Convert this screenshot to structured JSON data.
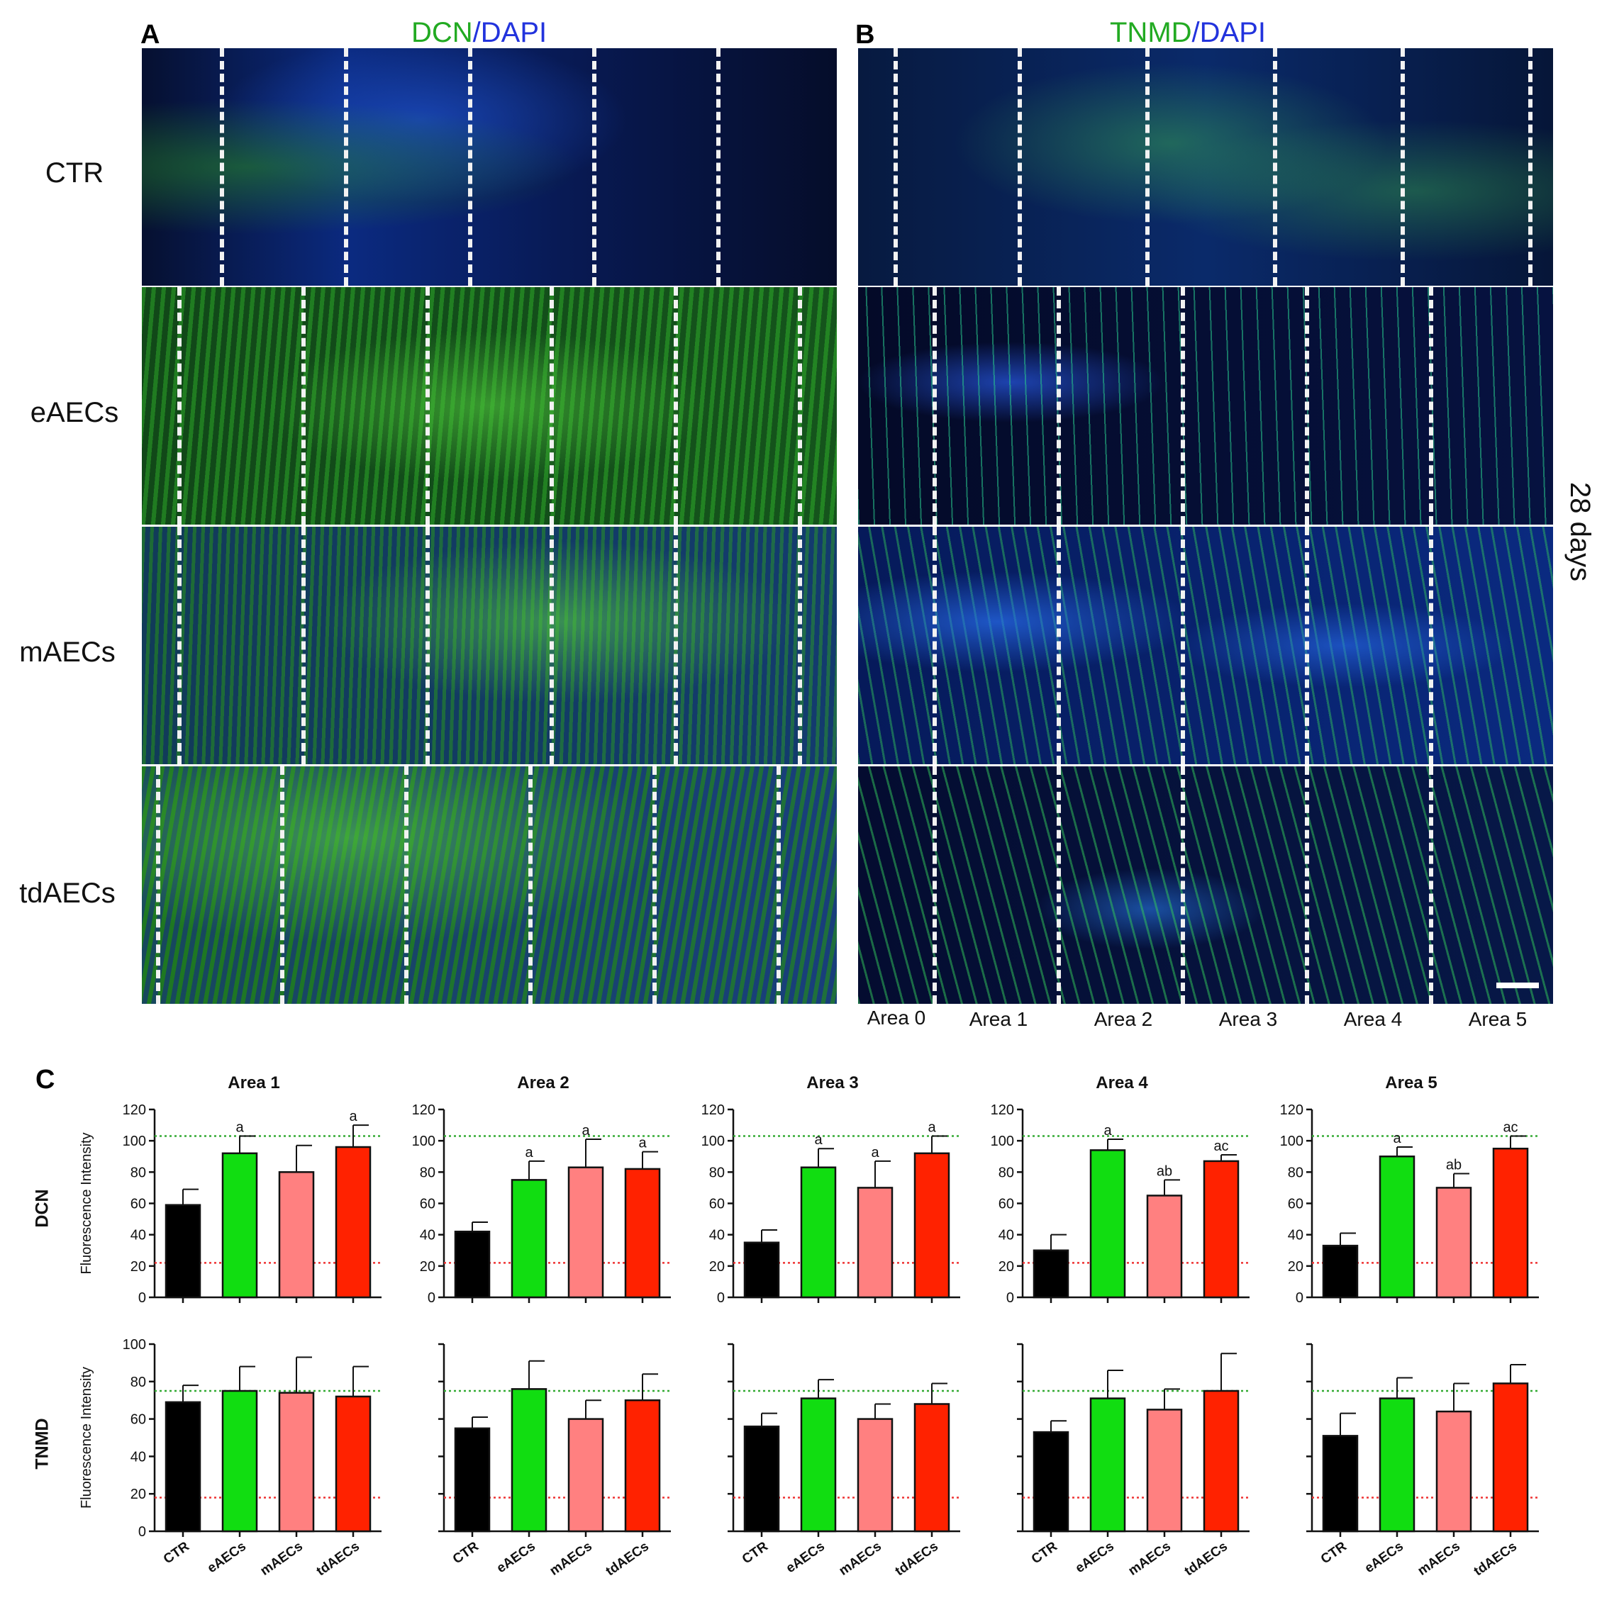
{
  "panel_a": {
    "letter": "A",
    "title_green": "DCN",
    "title_sep": "/",
    "title_blue": "DAPI"
  },
  "panel_b": {
    "letter": "B",
    "title_green": "TNMD",
    "title_sep": "/",
    "title_blue": "DAPI"
  },
  "panel_c": {
    "letter": "C"
  },
  "row_labels": [
    "CTR",
    "eAECs",
    "mAECs",
    "tdAECs"
  ],
  "side_label": "28 days",
  "area_labels": [
    "Area 0",
    "Area 1",
    "Area 2",
    "Area 3",
    "Area 4",
    "Area 5"
  ],
  "colors": {
    "green_text": "#22aa22",
    "blue_text": "#2233dd",
    "ctr": "#000000",
    "eaecs": "#11dd11",
    "maecs": "#ff8080",
    "tdaecs": "#ff2200",
    "ref_green": "#33aa33",
    "ref_red": "#ee3333"
  },
  "chart_data": [
    {
      "type": "bar",
      "row": "DCN",
      "title": "Area 1",
      "ylabel": "Fluorescence Intensity",
      "categories": [
        "CTR",
        "eAECs",
        "mAECs",
        "tdAECs"
      ],
      "values": [
        59,
        92,
        80,
        96
      ],
      "errors": [
        10,
        11,
        17,
        14
      ],
      "annotations": [
        "",
        "a",
        "",
        "a"
      ],
      "ylim": [
        0,
        120
      ],
      "yticks": [
        0,
        20,
        40,
        60,
        80,
        100,
        120
      ],
      "show_tick_labels": true,
      "ref_lines": {
        "green": 103,
        "red": 22
      }
    },
    {
      "type": "bar",
      "row": "DCN",
      "title": "Area 2",
      "ylabel": "",
      "categories": [
        "CTR",
        "eAECs",
        "mAECs",
        "tdAECs"
      ],
      "values": [
        42,
        75,
        83,
        82
      ],
      "errors": [
        6,
        12,
        18,
        11
      ],
      "annotations": [
        "",
        "a",
        "a",
        "a"
      ],
      "ylim": [
        0,
        120
      ],
      "yticks": [
        0,
        20,
        40,
        60,
        80,
        100,
        120
      ],
      "show_tick_labels": true,
      "ref_lines": {
        "green": 103,
        "red": 22
      }
    },
    {
      "type": "bar",
      "row": "DCN",
      "title": "Area 3",
      "ylabel": "",
      "categories": [
        "CTR",
        "eAECs",
        "mAECs",
        "tdAECs"
      ],
      "values": [
        35,
        83,
        70,
        92
      ],
      "errors": [
        8,
        12,
        17,
        11
      ],
      "annotations": [
        "",
        "a",
        "a",
        "a"
      ],
      "ylim": [
        0,
        120
      ],
      "yticks": [
        0,
        20,
        40,
        60,
        80,
        100,
        120
      ],
      "show_tick_labels": true,
      "ref_lines": {
        "green": 103,
        "red": 22
      }
    },
    {
      "type": "bar",
      "row": "DCN",
      "title": "Area 4",
      "ylabel": "",
      "categories": [
        "CTR",
        "eAECs",
        "mAECs",
        "tdAECs"
      ],
      "values": [
        30,
        94,
        65,
        87
      ],
      "errors": [
        10,
        7,
        10,
        4
      ],
      "annotations": [
        "",
        "a",
        "ab",
        "ac"
      ],
      "ylim": [
        0,
        120
      ],
      "yticks": [
        0,
        20,
        40,
        60,
        80,
        100,
        120
      ],
      "show_tick_labels": true,
      "ref_lines": {
        "green": 103,
        "red": 22
      }
    },
    {
      "type": "bar",
      "row": "DCN",
      "title": "Area 5",
      "ylabel": "",
      "categories": [
        "CTR",
        "eAECs",
        "mAECs",
        "tdAECs"
      ],
      "values": [
        33,
        90,
        70,
        95
      ],
      "errors": [
        8,
        6,
        9,
        8
      ],
      "annotations": [
        "",
        "a",
        "ab",
        "ac"
      ],
      "ylim": [
        0,
        120
      ],
      "yticks": [
        0,
        20,
        40,
        60,
        80,
        100,
        120
      ],
      "show_tick_labels": true,
      "ref_lines": {
        "green": 103,
        "red": 22
      }
    },
    {
      "type": "bar",
      "row": "TNMD",
      "title": "",
      "ylabel": "Fluorescence Intensity",
      "categories": [
        "CTR",
        "eAECs",
        "mAECs",
        "tdAECs"
      ],
      "values": [
        69,
        75,
        74,
        72
      ],
      "errors": [
        9,
        13,
        19,
        16
      ],
      "annotations": [
        "",
        "",
        "",
        ""
      ],
      "ylim": [
        0,
        100
      ],
      "yticks": [
        0,
        20,
        40,
        60,
        80,
        100
      ],
      "show_tick_labels": true,
      "ref_lines": {
        "green": 75,
        "red": 18
      }
    },
    {
      "type": "bar",
      "row": "TNMD",
      "title": "",
      "ylabel": "",
      "categories": [
        "CTR",
        "eAECs",
        "mAECs",
        "tdAECs"
      ],
      "values": [
        55,
        76,
        60,
        70
      ],
      "errors": [
        6,
        15,
        10,
        14
      ],
      "annotations": [
        "",
        "",
        "",
        ""
      ],
      "ylim": [
        0,
        100
      ],
      "yticks": [
        0,
        20,
        40,
        60,
        80,
        100
      ],
      "show_tick_labels": false,
      "ref_lines": {
        "green": 75,
        "red": 18
      }
    },
    {
      "type": "bar",
      "row": "TNMD",
      "title": "",
      "ylabel": "",
      "categories": [
        "CTR",
        "eAECs",
        "mAECs",
        "tdAECs"
      ],
      "values": [
        56,
        71,
        60,
        68
      ],
      "errors": [
        7,
        10,
        8,
        11
      ],
      "annotations": [
        "",
        "",
        "",
        ""
      ],
      "ylim": [
        0,
        100
      ],
      "yticks": [
        0,
        20,
        40,
        60,
        80,
        100
      ],
      "show_tick_labels": false,
      "ref_lines": {
        "green": 75,
        "red": 18
      }
    },
    {
      "type": "bar",
      "row": "TNMD",
      "title": "",
      "ylabel": "",
      "categories": [
        "CTR",
        "eAECs",
        "mAECs",
        "tdAECs"
      ],
      "values": [
        53,
        71,
        65,
        75
      ],
      "errors": [
        6,
        15,
        11,
        20
      ],
      "annotations": [
        "",
        "",
        "",
        ""
      ],
      "ylim": [
        0,
        100
      ],
      "yticks": [
        0,
        20,
        40,
        60,
        80,
        100
      ],
      "show_tick_labels": false,
      "ref_lines": {
        "green": 75,
        "red": 18
      }
    },
    {
      "type": "bar",
      "row": "TNMD",
      "title": "",
      "ylabel": "",
      "categories": [
        "CTR",
        "eAECs",
        "mAECs",
        "tdAECs"
      ],
      "values": [
        51,
        71,
        64,
        79
      ],
      "errors": [
        12,
        11,
        15,
        10
      ],
      "annotations": [
        "",
        "",
        "",
        ""
      ],
      "ylim": [
        0,
        100
      ],
      "yticks": [
        0,
        20,
        40,
        60,
        80,
        100
      ],
      "show_tick_labels": false,
      "ref_lines": {
        "green": 75,
        "red": 18
      }
    }
  ]
}
